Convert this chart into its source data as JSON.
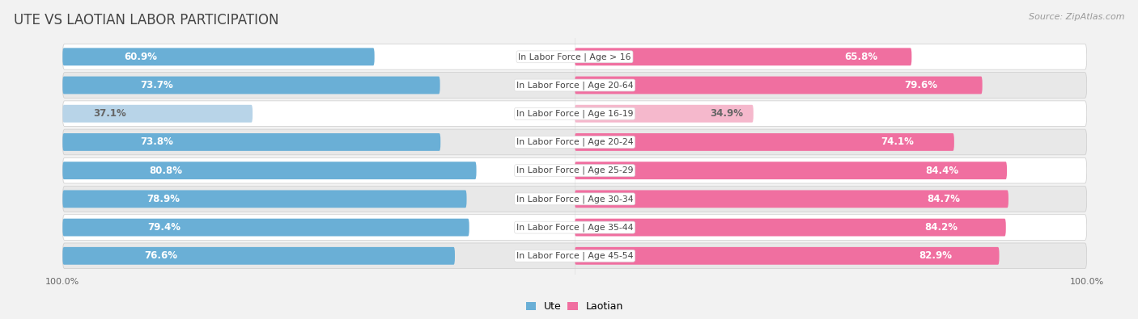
{
  "title": "UTE VS LAOTIAN LABOR PARTICIPATION",
  "source": "Source: ZipAtlas.com",
  "categories": [
    "In Labor Force | Age > 16",
    "In Labor Force | Age 20-64",
    "In Labor Force | Age 16-19",
    "In Labor Force | Age 20-24",
    "In Labor Force | Age 25-29",
    "In Labor Force | Age 30-34",
    "In Labor Force | Age 35-44",
    "In Labor Force | Age 45-54"
  ],
  "ute_values": [
    60.9,
    73.7,
    37.1,
    73.8,
    80.8,
    78.9,
    79.4,
    76.6
  ],
  "laotian_values": [
    65.8,
    79.6,
    34.9,
    74.1,
    84.4,
    84.7,
    84.2,
    82.9
  ],
  "ute_color_strong": "#6aafd6",
  "ute_color_light": "#b8d4e8",
  "laotian_color_strong": "#f06fa0",
  "laotian_color_light": "#f5b8cc",
  "bg_color": "#f2f2f2",
  "row_bg_light": "#ffffff",
  "row_bg_dark": "#e8e8e8",
  "bar_height": 0.62,
  "max_val": 100.0,
  "title_fontsize": 12,
  "value_fontsize": 8.5,
  "category_fontsize": 7.8,
  "legend_fontsize": 9,
  "source_fontsize": 8,
  "axis_label_fontsize": 8
}
